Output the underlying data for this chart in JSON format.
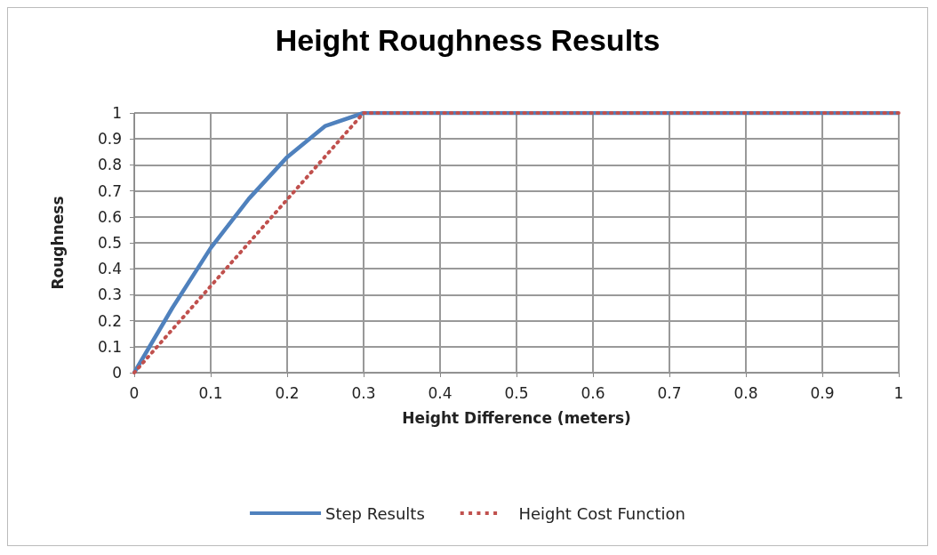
{
  "chart_data": {
    "type": "line",
    "title": "Height Roughness Results",
    "xlabel": "Height Difference (meters)",
    "ylabel": "Roughness",
    "series": [
      {
        "name": "Step Results",
        "color": "#4f81bd",
        "line_style": "solid",
        "x": [
          0,
          0.05,
          0.1,
          0.15,
          0.2,
          0.25,
          0.3,
          1
        ],
        "values": [
          0,
          0.25,
          0.48,
          0.67,
          0.83,
          0.95,
          1,
          1
        ]
      },
      {
        "name": "Height Cost Function",
        "color": "#c0504d",
        "line_style": "dotted",
        "x": [
          0,
          0.3,
          1
        ],
        "values": [
          0,
          1,
          1
        ]
      }
    ],
    "xlim": [
      0,
      1
    ],
    "xticks": [
      0,
      0.1,
      0.2,
      0.3,
      0.4,
      0.5,
      0.6,
      0.7,
      0.8,
      0.9,
      1
    ],
    "ylim": [
      0,
      1
    ],
    "yticks": [
      0,
      0.1,
      0.2,
      0.3,
      0.4,
      0.5,
      0.6,
      0.7,
      0.8,
      0.9,
      1
    ],
    "grid": true,
    "legend": "bottom",
    "marker": "none"
  }
}
